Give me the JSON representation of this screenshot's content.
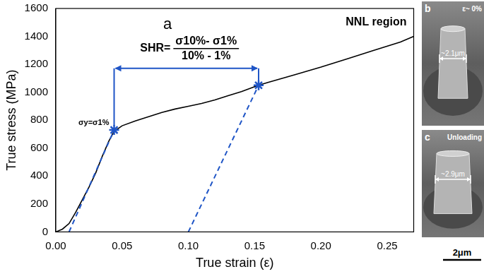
{
  "chart_data": {
    "type": "line",
    "panel_label": "a",
    "region_label": "NNL region",
    "xlabel": "True strain (ε)",
    "ylabel": "True stress (MPa)",
    "xlim": [
      0,
      0.27
    ],
    "xticks": [
      {
        "value": 0,
        "label": "0.00"
      },
      {
        "value": 0.05,
        "label": "0.05"
      },
      {
        "value": 0.1,
        "label": "0.10"
      },
      {
        "value": 0.15,
        "label": "0.15"
      },
      {
        "value": 0.2,
        "label": "0.20"
      },
      {
        "value": 0.25,
        "label": "0.25"
      }
    ],
    "ylim": [
      0,
      1600
    ],
    "yticks": [
      0,
      200,
      400,
      600,
      800,
      1000,
      1200,
      1400,
      1600
    ],
    "grid": false,
    "color": "#000000",
    "x": [
      0,
      0.005,
      0.01,
      0.015,
      0.02,
      0.025,
      0.03,
      0.035,
      0.04,
      0.044,
      0.05,
      0.06,
      0.07,
      0.08,
      0.09,
      0.1,
      0.11,
      0.12,
      0.13,
      0.14,
      0.15,
      0.153,
      0.16,
      0.18,
      0.2,
      0.22,
      0.24,
      0.26,
      0.27
    ],
    "values": [
      0,
      20,
      60,
      140,
      230,
      320,
      420,
      540,
      650,
      720,
      760,
      795,
      825,
      855,
      880,
      900,
      920,
      945,
      975,
      1005,
      1040,
      1050,
      1070,
      1125,
      1180,
      1240,
      1300,
      1360,
      1400
    ],
    "points": {
      "color": "#1f55c6",
      "marker": "star",
      "x": [
        0.044,
        0.153
      ],
      "values": [
        730,
        1050
      ]
    },
    "point_label": "σy=σ1%",
    "unloading_lines": {
      "color": "#1f55c6",
      "line_style": "dashed",
      "lines": [
        {
          "x": [
            0.01,
            0.044
          ],
          "values": [
            0,
            730
          ]
        },
        {
          "x": [
            0.1,
            0.153
          ],
          "values": [
            0,
            1050
          ]
        }
      ]
    },
    "formula": {
      "color": "#1f55c6",
      "lhs": "SHR=",
      "numerator": "σ10%- σ1%",
      "denominator": "10% - 1%"
    }
  },
  "images": [
    {
      "label": "b",
      "text": "ε~ 0%",
      "width_label": "~2.1μm"
    },
    {
      "label": "c",
      "text": "Unloading",
      "width_label": "~2.9μm"
    }
  ],
  "scale_bar": "2μm"
}
